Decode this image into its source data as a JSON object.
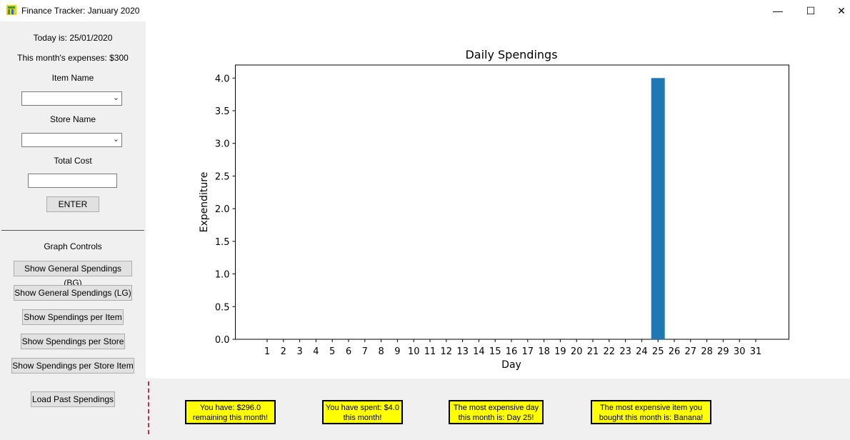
{
  "window": {
    "title": "Finance Tracker: January 2020",
    "minimize": "—",
    "maximize": "☐",
    "close": "✕",
    "app_icon": "finance-tracker-icon"
  },
  "sidebar": {
    "today": "Today is: 25/01/2020",
    "expenses": "This month's expenses: $300",
    "item_name_label": "Item Name",
    "item_name_value": "",
    "store_name_label": "Store Name",
    "store_name_value": "",
    "total_cost_label": "Total Cost",
    "total_cost_value": "",
    "enter_button": "ENTER",
    "graph_controls_label": "Graph Controls",
    "graph_buttons": [
      "Show General Spendings (BG)",
      "Show General Spendings (LG)",
      "Show Spendings per Item",
      "Show Spendings per Store",
      "Show Spendings per Store Item"
    ],
    "load_button": "Load Past Spendings"
  },
  "summary": {
    "remaining": "You have: $296.0\nremaining this month!",
    "spent": "You have spent: $4.0\nthis month!",
    "expensive_day": "The most expensive day\nthis month is: Day 25!",
    "expensive_item": "The most expensive item you\nbought this month is: Banana!"
  },
  "colors": {
    "bar": "#1f77b4",
    "summary_bg": "#ffff00"
  },
  "chart_data": {
    "type": "bar",
    "title": "Daily Spendings",
    "xlabel": "Day",
    "ylabel": "Expenditure",
    "categories": [
      "1",
      "2",
      "3",
      "4",
      "5",
      "6",
      "7",
      "8",
      "9",
      "10",
      "11",
      "12",
      "13",
      "14",
      "15",
      "16",
      "17",
      "18",
      "19",
      "20",
      "21",
      "22",
      "23",
      "24",
      "25",
      "26",
      "27",
      "28",
      "29",
      "30",
      "31"
    ],
    "values": [
      0,
      0,
      0,
      0,
      0,
      0,
      0,
      0,
      0,
      0,
      0,
      0,
      0,
      0,
      0,
      0,
      0,
      0,
      0,
      0,
      0,
      0,
      0,
      0,
      4.0,
      0,
      0,
      0,
      0,
      0,
      0
    ],
    "ylim": [
      0,
      4.2
    ],
    "yticks": [
      "0.0",
      "0.5",
      "1.0",
      "1.5",
      "2.0",
      "2.5",
      "3.0",
      "3.5",
      "4.0"
    ],
    "grid": false
  }
}
